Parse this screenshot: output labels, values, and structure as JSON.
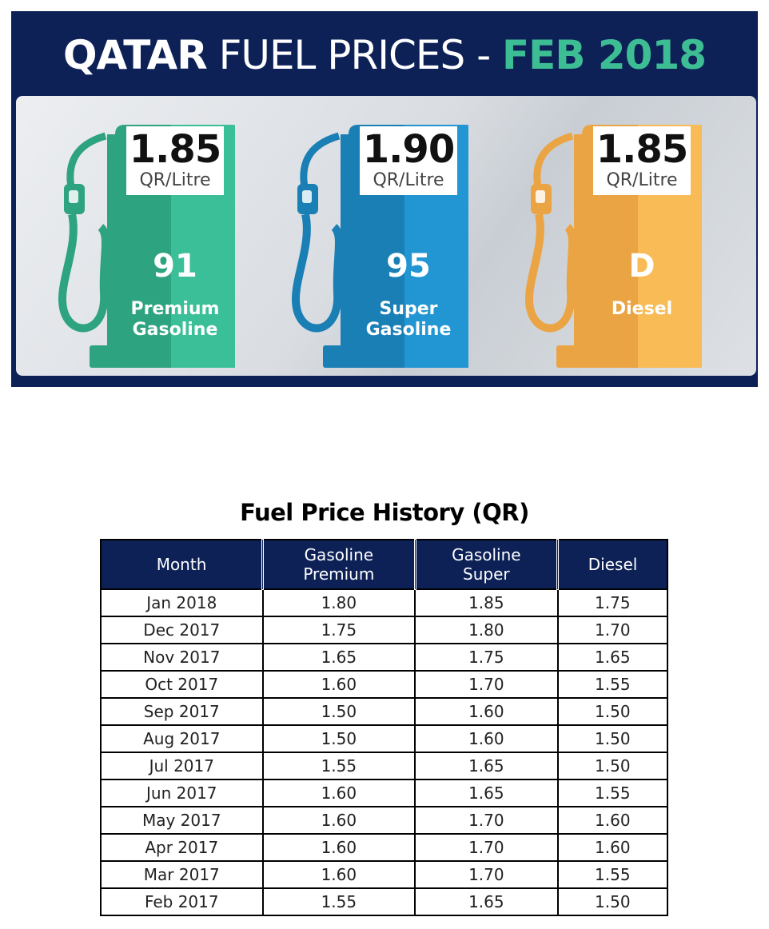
{
  "banner": {
    "title_part1": "QATAR",
    "title_part2": " FUEL PRICES - ",
    "title_part3": "FEB 2018",
    "colors": {
      "background": "#0d2157",
      "accent": "#3dbd93"
    },
    "pumps": [
      {
        "price": "1.85",
        "unit": "QR/Litre",
        "grade": "91",
        "name_line1": "Premium",
        "name_line2": "Gasoline",
        "color_dark": "#2ea37f",
        "color_light": "#3bbf98",
        "icon": "fuel-pump-icon"
      },
      {
        "price": "1.90",
        "unit": "QR/Litre",
        "grade": "95",
        "name_line1": "Super",
        "name_line2": "Gasoline",
        "color_dark": "#1a7fb4",
        "color_light": "#2196d3",
        "icon": "fuel-pump-icon"
      },
      {
        "price": "1.85",
        "unit": "QR/Litre",
        "grade": "D",
        "name_line1": "",
        "name_line2": "Diesel",
        "color_dark": "#eba443",
        "color_light": "#f8bb55",
        "icon": "fuel-pump-icon"
      }
    ]
  },
  "table": {
    "title": "Fuel Price History (QR)",
    "headers": [
      {
        "line1": "Month",
        "line2": ""
      },
      {
        "line1": "Gasoline",
        "line2": "Premium"
      },
      {
        "line1": "Gasoline",
        "line2": "Super"
      },
      {
        "line1": "Diesel",
        "line2": ""
      }
    ],
    "rows": [
      [
        "Jan 2018",
        "1.80",
        "1.85",
        "1.75"
      ],
      [
        "Dec 2017",
        "1.75",
        "1.80",
        "1.70"
      ],
      [
        "Nov 2017",
        "1.65",
        "1.75",
        "1.65"
      ],
      [
        "Oct 2017",
        "1.60",
        "1.70",
        "1.55"
      ],
      [
        "Sep 2017",
        "1.50",
        "1.60",
        "1.50"
      ],
      [
        "Aug 2017",
        "1.50",
        "1.60",
        "1.50"
      ],
      [
        "Jul 2017",
        "1.55",
        "1.65",
        "1.50"
      ],
      [
        "Jun 2017",
        "1.60",
        "1.65",
        "1.55"
      ],
      [
        "May 2017",
        "1.60",
        "1.70",
        "1.60"
      ],
      [
        "Apr 2017",
        "1.60",
        "1.70",
        "1.60"
      ],
      [
        "Mar 2017",
        "1.60",
        "1.70",
        "1.55"
      ],
      [
        "Feb 2017",
        "1.55",
        "1.65",
        "1.50"
      ]
    ]
  }
}
